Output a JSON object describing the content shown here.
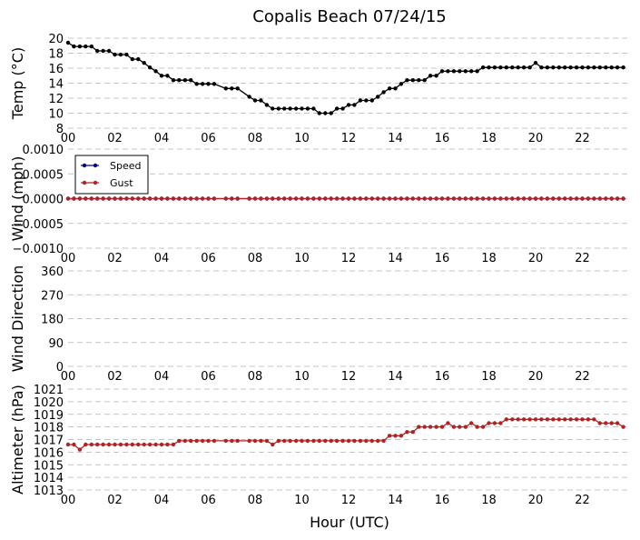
{
  "title": "Copalis Beach 07/24/15",
  "xlabel": "Hour (UTC)",
  "x_ticks": [
    "00",
    "02",
    "04",
    "06",
    "08",
    "10",
    "12",
    "14",
    "16",
    "18",
    "20",
    "22"
  ],
  "colors": {
    "temp": "#000000",
    "speed": "#00008b",
    "gust": "#b22222",
    "grid": "#b0b0b0"
  },
  "chart_data": [
    {
      "type": "line",
      "ylabel": "Temp ($^{\\circ}$C)",
      "ylabel_display": "Temp (°C)",
      "ylim": [
        8,
        20
      ],
      "yticks": [
        "8",
        "10",
        "12",
        "14",
        "16",
        "18",
        "20"
      ],
      "xlim": [
        0,
        24
      ],
      "grid": true,
      "series": [
        {
          "color_key": "temp",
          "points": [
            [
              0.0,
              19.4
            ],
            [
              0.25,
              18.9
            ],
            [
              0.5,
              18.9
            ],
            [
              0.75,
              18.9
            ],
            [
              1.0,
              18.9
            ],
            [
              1.25,
              18.3
            ],
            [
              1.5,
              18.3
            ],
            [
              1.75,
              18.3
            ],
            [
              2.0,
              17.8
            ],
            [
              2.25,
              17.8
            ],
            [
              2.5,
              17.8
            ],
            [
              2.75,
              17.2
            ],
            [
              3.0,
              17.2
            ],
            [
              3.25,
              16.7
            ],
            [
              3.5,
              16.1
            ],
            [
              3.75,
              15.6
            ],
            [
              4.0,
              15.0
            ],
            [
              4.25,
              15.0
            ],
            [
              4.5,
              14.4
            ],
            [
              4.75,
              14.4
            ],
            [
              5.0,
              14.4
            ],
            [
              5.25,
              14.4
            ],
            [
              5.5,
              13.9
            ],
            [
              5.75,
              13.9
            ],
            [
              6.0,
              13.9
            ],
            [
              6.25,
              13.9
            ],
            [
              6.75,
              13.3
            ],
            [
              7.0,
              13.3
            ],
            [
              7.25,
              13.3
            ],
            [
              7.75,
              12.2
            ],
            [
              8.0,
              11.7
            ],
            [
              8.25,
              11.7
            ],
            [
              8.5,
              11.1
            ],
            [
              8.75,
              10.6
            ],
            [
              9.0,
              10.6
            ],
            [
              9.25,
              10.6
            ],
            [
              9.5,
              10.6
            ],
            [
              9.75,
              10.6
            ],
            [
              10.0,
              10.6
            ],
            [
              10.25,
              10.6
            ],
            [
              10.5,
              10.6
            ],
            [
              10.75,
              10.0
            ],
            [
              11.0,
              10.0
            ],
            [
              11.25,
              10.0
            ],
            [
              11.5,
              10.6
            ],
            [
              11.75,
              10.6
            ],
            [
              12.0,
              11.1
            ],
            [
              12.25,
              11.1
            ],
            [
              12.5,
              11.7
            ],
            [
              12.75,
              11.7
            ],
            [
              13.0,
              11.7
            ],
            [
              13.25,
              12.2
            ],
            [
              13.5,
              12.8
            ],
            [
              13.75,
              13.3
            ],
            [
              14.0,
              13.3
            ],
            [
              14.25,
              13.9
            ],
            [
              14.5,
              14.4
            ],
            [
              14.75,
              14.4
            ],
            [
              15.0,
              14.4
            ],
            [
              15.25,
              14.4
            ],
            [
              15.5,
              15.0
            ],
            [
              15.75,
              15.0
            ],
            [
              16.0,
              15.6
            ],
            [
              16.25,
              15.6
            ],
            [
              16.5,
              15.6
            ],
            [
              16.75,
              15.6
            ],
            [
              17.0,
              15.6
            ],
            [
              17.25,
              15.6
            ],
            [
              17.5,
              15.6
            ],
            [
              17.75,
              16.1
            ],
            [
              18.0,
              16.1
            ],
            [
              18.25,
              16.1
            ],
            [
              18.5,
              16.1
            ],
            [
              18.75,
              16.1
            ],
            [
              19.0,
              16.1
            ],
            [
              19.25,
              16.1
            ],
            [
              19.5,
              16.1
            ],
            [
              19.75,
              16.1
            ],
            [
              20.0,
              16.7
            ],
            [
              20.25,
              16.1
            ],
            [
              20.5,
              16.1
            ],
            [
              20.75,
              16.1
            ],
            [
              21.0,
              16.1
            ],
            [
              21.25,
              16.1
            ],
            [
              21.5,
              16.1
            ],
            [
              21.75,
              16.1
            ],
            [
              22.0,
              16.1
            ],
            [
              22.25,
              16.1
            ],
            [
              22.5,
              16.1
            ],
            [
              22.75,
              16.1
            ],
            [
              23.0,
              16.1
            ],
            [
              23.25,
              16.1
            ],
            [
              23.5,
              16.1
            ],
            [
              23.75,
              16.1
            ]
          ]
        }
      ]
    },
    {
      "type": "line",
      "ylabel": "Wind (mph)",
      "ylim": [
        -0.001,
        0.001
      ],
      "yticks": [
        "−0.0010",
        "−0.0005",
        "0.0000",
        "0.0005",
        "0.0010"
      ],
      "xlim": [
        0,
        24
      ],
      "grid": true,
      "legend": "top-left",
      "series": [
        {
          "name": "Speed",
          "color_key": "speed",
          "start": 0.0,
          "end": 23.75,
          "step": 0.25,
          "value": 0,
          "gaps": [
            6.5,
            7.5
          ]
        },
        {
          "name": "Gust",
          "color_key": "gust",
          "start": 0.0,
          "end": 23.75,
          "step": 0.25,
          "value": 0,
          "gaps": [
            6.5,
            7.5
          ]
        }
      ]
    },
    {
      "type": "scatter",
      "ylabel": "Wind Direction",
      "ylim": [
        0,
        360
      ],
      "yticks": [
        "0",
        "90",
        "180",
        "270",
        "360"
      ],
      "xlim": [
        0,
        24
      ],
      "grid": true,
      "series": []
    },
    {
      "type": "line",
      "ylabel": "Altimeter (hPa)",
      "ylim": [
        1013,
        1021
      ],
      "yticks": [
        "1013",
        "1014",
        "1015",
        "1016",
        "1017",
        "1018",
        "1019",
        "1020",
        "1021"
      ],
      "xlim": [
        0,
        24
      ],
      "grid": true,
      "series": [
        {
          "color_key": "gust",
          "points": [
            [
              0.0,
              1016.6
            ],
            [
              0.25,
              1016.6
            ],
            [
              0.5,
              1016.2
            ],
            [
              0.75,
              1016.6
            ],
            [
              1.0,
              1016.6
            ],
            [
              1.25,
              1016.6
            ],
            [
              1.5,
              1016.6
            ],
            [
              1.75,
              1016.6
            ],
            [
              2.0,
              1016.6
            ],
            [
              2.25,
              1016.6
            ],
            [
              2.5,
              1016.6
            ],
            [
              2.75,
              1016.6
            ],
            [
              3.0,
              1016.6
            ],
            [
              3.25,
              1016.6
            ],
            [
              3.5,
              1016.6
            ],
            [
              3.75,
              1016.6
            ],
            [
              4.0,
              1016.6
            ],
            [
              4.25,
              1016.6
            ],
            [
              4.5,
              1016.6
            ],
            [
              4.75,
              1016.9
            ],
            [
              5.0,
              1016.9
            ],
            [
              5.25,
              1016.9
            ],
            [
              5.5,
              1016.9
            ],
            [
              5.75,
              1016.9
            ],
            [
              6.0,
              1016.9
            ],
            [
              6.25,
              1016.9
            ],
            [
              6.75,
              1016.9
            ],
            [
              7.0,
              1016.9
            ],
            [
              7.25,
              1016.9
            ],
            [
              7.75,
              1016.9
            ],
            [
              8.0,
              1016.9
            ],
            [
              8.25,
              1016.9
            ],
            [
              8.5,
              1016.9
            ],
            [
              8.75,
              1016.6
            ],
            [
              9.0,
              1016.9
            ],
            [
              9.25,
              1016.9
            ],
            [
              9.5,
              1016.9
            ],
            [
              9.75,
              1016.9
            ],
            [
              10.0,
              1016.9
            ],
            [
              10.25,
              1016.9
            ],
            [
              10.5,
              1016.9
            ],
            [
              10.75,
              1016.9
            ],
            [
              11.0,
              1016.9
            ],
            [
              11.25,
              1016.9
            ],
            [
              11.5,
              1016.9
            ],
            [
              11.75,
              1016.9
            ],
            [
              12.0,
              1016.9
            ],
            [
              12.25,
              1016.9
            ],
            [
              12.5,
              1016.9
            ],
            [
              12.75,
              1016.9
            ],
            [
              13.0,
              1016.9
            ],
            [
              13.25,
              1016.9
            ],
            [
              13.5,
              1016.9
            ],
            [
              13.75,
              1017.3
            ],
            [
              14.0,
              1017.3
            ],
            [
              14.25,
              1017.3
            ],
            [
              14.5,
              1017.6
            ],
            [
              14.75,
              1017.6
            ],
            [
              15.0,
              1018.0
            ],
            [
              15.25,
              1018.0
            ],
            [
              15.5,
              1018.0
            ],
            [
              15.75,
              1018.0
            ],
            [
              16.0,
              1018.0
            ],
            [
              16.25,
              1018.3
            ],
            [
              16.5,
              1018.0
            ],
            [
              16.75,
              1018.0
            ],
            [
              17.0,
              1018.0
            ],
            [
              17.25,
              1018.3
            ],
            [
              17.5,
              1018.0
            ],
            [
              17.75,
              1018.0
            ],
            [
              18.0,
              1018.3
            ],
            [
              18.25,
              1018.3
            ],
            [
              18.5,
              1018.3
            ],
            [
              18.75,
              1018.6
            ],
            [
              19.0,
              1018.6
            ],
            [
              19.25,
              1018.6
            ],
            [
              19.5,
              1018.6
            ],
            [
              19.75,
              1018.6
            ],
            [
              20.0,
              1018.6
            ],
            [
              20.25,
              1018.6
            ],
            [
              20.5,
              1018.6
            ],
            [
              20.75,
              1018.6
            ],
            [
              21.0,
              1018.6
            ],
            [
              21.25,
              1018.6
            ],
            [
              21.5,
              1018.6
            ],
            [
              21.75,
              1018.6
            ],
            [
              22.0,
              1018.6
            ],
            [
              22.25,
              1018.6
            ],
            [
              22.5,
              1018.6
            ],
            [
              22.75,
              1018.3
            ],
            [
              23.0,
              1018.3
            ],
            [
              23.25,
              1018.3
            ],
            [
              23.5,
              1018.3
            ],
            [
              23.75,
              1018.0
            ]
          ]
        }
      ]
    }
  ]
}
